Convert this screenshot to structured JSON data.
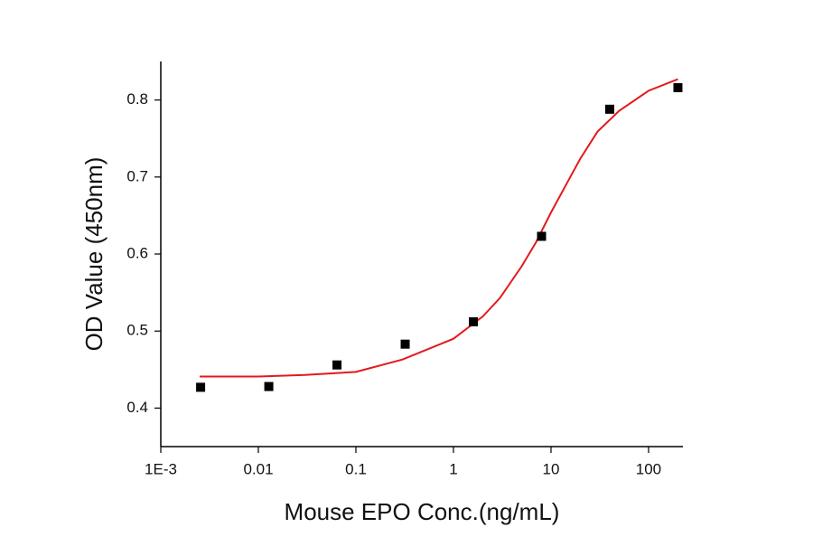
{
  "chart_data": {
    "type": "scatter",
    "x_label": "Mouse EPO Conc.(ng/mL)",
    "y_label": "OD Value (450nm)",
    "x_scale": "log",
    "xlim": [
      0.001,
      225
    ],
    "ylim": [
      0.35,
      0.85
    ],
    "xticks": [
      {
        "value": 0.001,
        "label": "1E-3"
      },
      0.01,
      0.1,
      1,
      10,
      100
    ],
    "yticks": [
      0.4,
      0.5,
      0.6,
      0.7,
      0.8
    ],
    "points": {
      "color": "#000000",
      "x": [
        0.00256,
        0.0128,
        0.064,
        0.32,
        1.6,
        8,
        40,
        200
      ],
      "values": [
        0.427,
        0.428,
        0.456,
        0.483,
        0.512,
        0.623,
        0.788,
        0.816
      ]
    },
    "fit": {
      "color": "#e3191c",
      "x": [
        0.0025,
        0.01,
        0.03,
        0.1,
        0.3,
        1,
        2,
        3,
        5,
        7,
        10,
        15,
        20,
        30,
        50,
        100,
        200
      ],
      "values": [
        0.441,
        0.441,
        0.443,
        0.447,
        0.463,
        0.49,
        0.519,
        0.543,
        0.584,
        0.615,
        0.654,
        0.695,
        0.724,
        0.759,
        0.786,
        0.812,
        0.827
      ]
    }
  }
}
